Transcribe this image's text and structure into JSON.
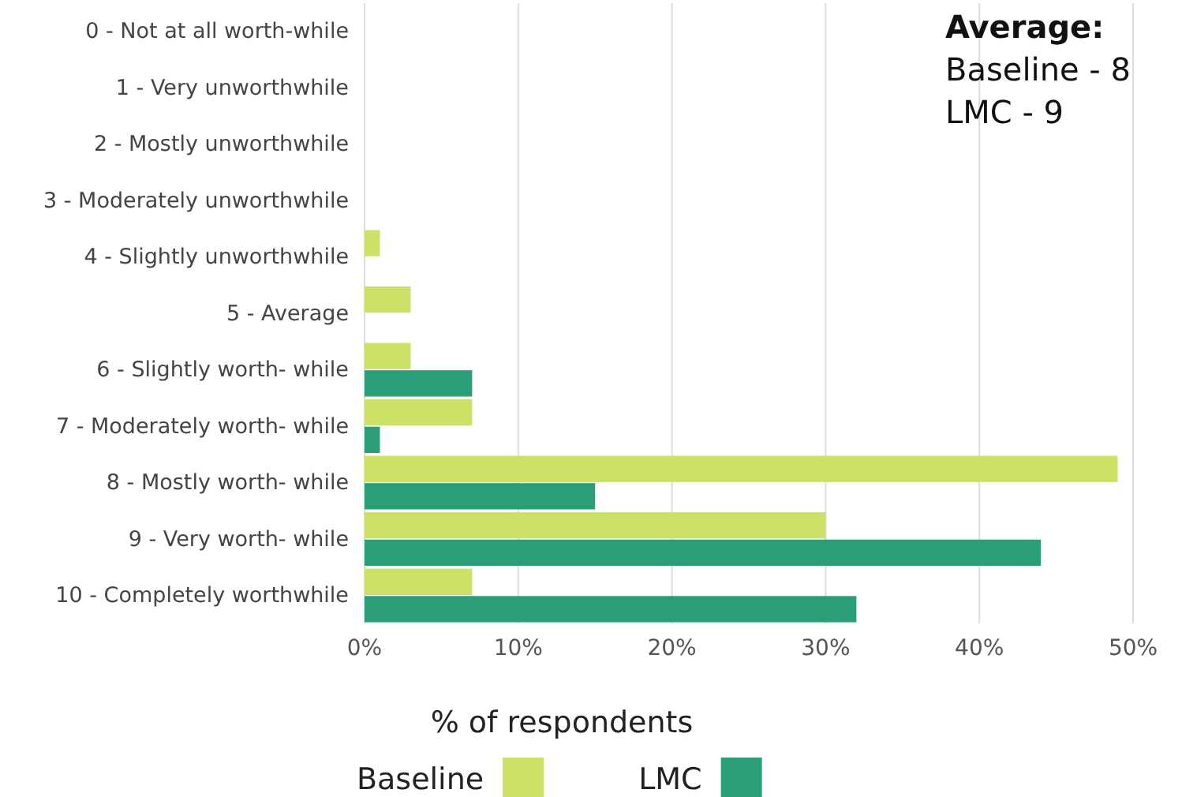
{
  "chart_data": {
    "type": "bar",
    "orientation": "horizontal",
    "categories": [
      "0 - Not at all worth-while",
      "1 - Very unworthwhile",
      "2 - Mostly unworthwhile",
      "3 - Moderately unworthwhile",
      "4 - Slightly unworthwhile",
      "5 - Average",
      "6 - Slightly worth- while",
      "7 - Moderately worth- while",
      "8 - Mostly worth- while",
      "9 - Very worth- while",
      "10 - Completely worthwhile"
    ],
    "series": [
      {
        "name": "Baseline",
        "color": "#cce266",
        "values": [
          null,
          null,
          null,
          null,
          1,
          3,
          3,
          7,
          49,
          30,
          7
        ]
      },
      {
        "name": "LMC",
        "color": "#2a9e78",
        "values": [
          null,
          null,
          null,
          null,
          null,
          null,
          7,
          1,
          15,
          44,
          32
        ]
      }
    ],
    "xlim": [
      0,
      50
    ],
    "xticks": [
      {
        "value": 0,
        "label": "0%"
      },
      {
        "value": 10,
        "label": "10%"
      },
      {
        "value": 20,
        "label": "20%"
      },
      {
        "value": 30,
        "label": "30%"
      },
      {
        "value": 40,
        "label": "40%"
      },
      {
        "value": 50,
        "label": "50%"
      }
    ],
    "xlabel": "% of respondents",
    "grid": "x",
    "legend": "bottom",
    "annotations": [
      "Average:",
      "Baseline - 8",
      "LMC - 9"
    ]
  }
}
